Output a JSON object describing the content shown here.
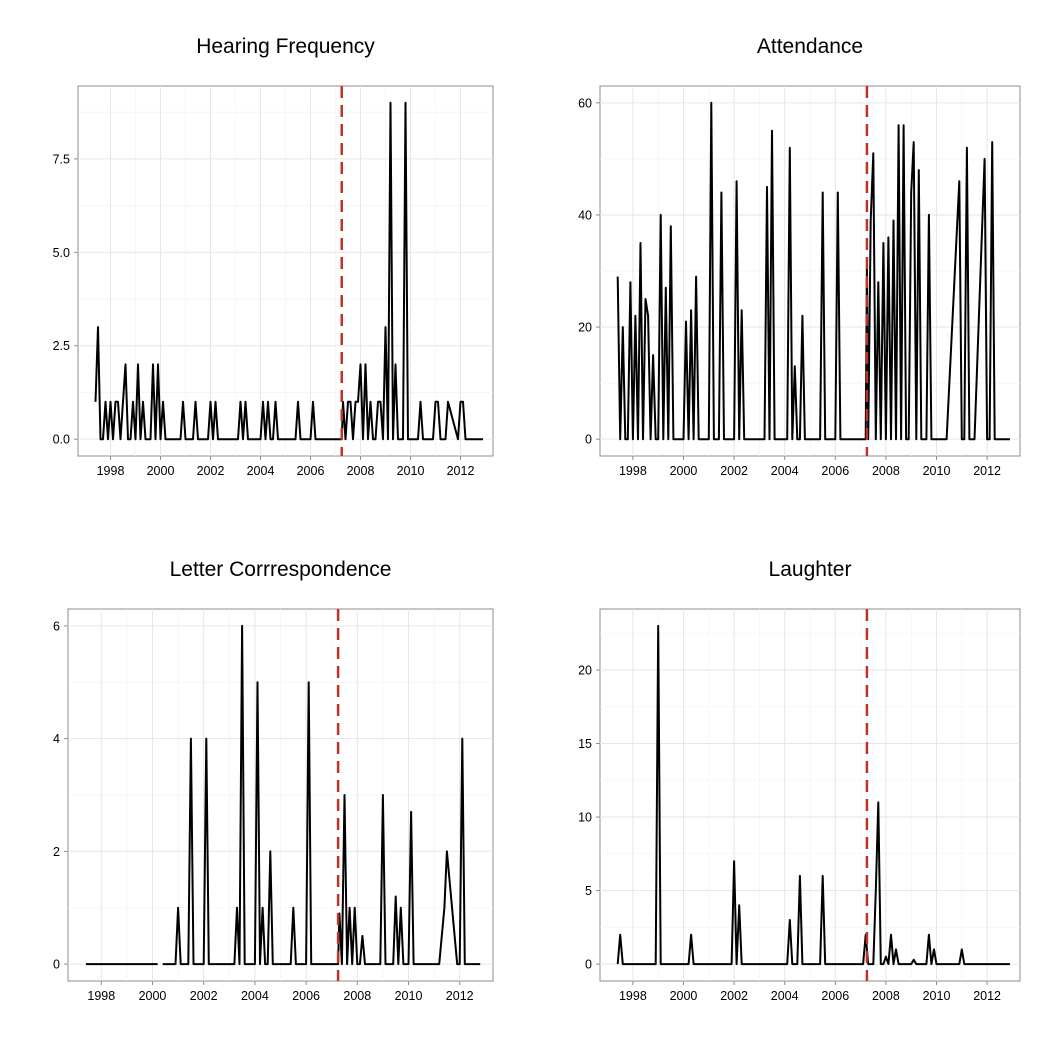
{
  "chart_data": [
    {
      "type": "line",
      "title": "Hearing Frequency",
      "xlim": [
        1996.7,
        2013.3
      ],
      "ylim": [
        -0.45,
        9.45
      ],
      "x_ticks": [
        1998,
        2000,
        2002,
        2004,
        2006,
        2008,
        2010,
        2012
      ],
      "y_ticks": [
        0.0,
        2.5,
        5.0,
        7.5
      ],
      "y_tick_labels": [
        "0.0",
        "2.5",
        "5.0",
        "7.5"
      ],
      "vline_x": 2007.25,
      "vline_color": "#c0312b",
      "x": [
        1997.4,
        1997.5,
        1997.6,
        1997.7,
        1997.8,
        1997.9,
        1998.0,
        1998.1,
        1998.2,
        1998.3,
        1998.4,
        1998.5,
        1998.6,
        1998.7,
        1998.8,
        1998.9,
        1999.0,
        1999.1,
        1999.2,
        1999.3,
        1999.4,
        1999.5,
        1999.6,
        1999.7,
        1999.8,
        1999.9,
        2000.0,
        2000.1,
        2000.2,
        2000.3,
        2000.4,
        2000.5,
        2000.8,
        2000.9,
        2001.0,
        2001.3,
        2001.4,
        2001.5,
        2001.9,
        2002.0,
        2002.1,
        2002.2,
        2002.3,
        2002.4,
        2003.1,
        2003.2,
        2003.3,
        2003.4,
        2003.5,
        2003.6,
        2004.0,
        2004.1,
        2004.2,
        2004.3,
        2004.4,
        2004.5,
        2004.6,
        2004.7,
        2004.8,
        2005.4,
        2005.5,
        2005.6,
        2006.0,
        2006.1,
        2006.2,
        2007.25,
        2007.3,
        2007.4,
        2007.5,
        2007.6,
        2007.7,
        2007.8,
        2007.9,
        2008.0,
        2008.1,
        2008.2,
        2008.3,
        2008.4,
        2008.5,
        2008.6,
        2008.7,
        2008.8,
        2008.9,
        2009.0,
        2009.1,
        2009.2,
        2009.3,
        2009.4,
        2009.5,
        2009.6,
        2009.7,
        2009.8,
        2009.9,
        2010.0,
        2010.1,
        2010.2,
        2010.3,
        2010.4,
        2010.5,
        2010.9,
        2011.0,
        2011.1,
        2011.2,
        2011.3,
        2011.4,
        2011.5,
        2011.9,
        2012.0,
        2012.1,
        2012.2,
        2012.3,
        2012.4,
        2012.5,
        2012.9
      ],
      "y": [
        1,
        3,
        0,
        0,
        1,
        0,
        1,
        0,
        1,
        1,
        0,
        1,
        2,
        0,
        0,
        1,
        0,
        2,
        0,
        1,
        0,
        0,
        0,
        2,
        0,
        2,
        0,
        1,
        0,
        0,
        0,
        0,
        0,
        1,
        0,
        0,
        1,
        0,
        0,
        1,
        0,
        1,
        0,
        0,
        0,
        1,
        0,
        1,
        0,
        0,
        0,
        1,
        0,
        1,
        0,
        0,
        1,
        0,
        0,
        0,
        1,
        0,
        0,
        1,
        0,
        0,
        1,
        0,
        1,
        1,
        0,
        1,
        1,
        2,
        0,
        2,
        0,
        1,
        0,
        0,
        1,
        1,
        0,
        3,
        0,
        9,
        0,
        2,
        0,
        0,
        0,
        9,
        0,
        0,
        0,
        0,
        0,
        1,
        0,
        0,
        1,
        1,
        0,
        0,
        0,
        1,
        0,
        1,
        1,
        0,
        0,
        0,
        0,
        0
      ]
    },
    {
      "type": "line",
      "title": "Attendance",
      "xlim": [
        1996.7,
        2013.3
      ],
      "ylim": [
        -3,
        63
      ],
      "x_ticks": [
        1998,
        2000,
        2002,
        2004,
        2006,
        2008,
        2010,
        2012
      ],
      "y_ticks": [
        0,
        20,
        40,
        60
      ],
      "y_tick_labels": [
        "0",
        "20",
        "40",
        "60"
      ],
      "vline_x": 2007.25,
      "vline_color": "#c0312b",
      "x": [
        1997.4,
        1997.5,
        1997.6,
        1997.7,
        1997.8,
        1997.9,
        1998.0,
        1998.1,
        1998.2,
        1998.3,
        1998.4,
        1998.5,
        1998.6,
        1998.7,
        1998.8,
        1998.9,
        1999.0,
        1999.1,
        1999.2,
        1999.3,
        1999.4,
        1999.5,
        1999.6,
        1999.7,
        1999.8,
        1999.9,
        2000.0,
        2000.1,
        2000.2,
        2000.3,
        2000.4,
        2000.5,
        2000.6,
        2000.7,
        2000.8,
        2000.9,
        2001.0,
        2001.1,
        2001.2,
        2001.3,
        2001.4,
        2001.5,
        2001.6,
        2002.0,
        2002.1,
        2002.2,
        2002.3,
        2002.4,
        2002.5,
        2003.1,
        2003.2,
        2003.3,
        2003.4,
        2003.5,
        2003.6,
        2004.0,
        2004.1,
        2004.2,
        2004.3,
        2004.4,
        2004.5,
        2004.6,
        2004.7,
        2004.8,
        2005.3,
        2005.4,
        2005.5,
        2005.6,
        2005.9,
        2006.0,
        2006.1,
        2006.2,
        2007.2,
        2007.25,
        2007.3,
        2007.4,
        2007.5,
        2007.6,
        2007.7,
        2007.8,
        2007.9,
        2008.0,
        2008.1,
        2008.2,
        2008.3,
        2008.4,
        2008.5,
        2008.6,
        2008.7,
        2008.8,
        2008.9,
        2009.0,
        2009.1,
        2009.2,
        2009.3,
        2009.4,
        2009.5,
        2009.6,
        2009.7,
        2009.8,
        2009.9,
        2010.0,
        2010.1,
        2010.2,
        2010.3,
        2010.4,
        2010.9,
        2011.0,
        2011.1,
        2011.2,
        2011.3,
        2011.4,
        2011.5,
        2011.9,
        2012.0,
        2012.1,
        2012.2,
        2012.3,
        2012.4,
        2012.5,
        2012.9
      ],
      "y": [
        29,
        0,
        20,
        0,
        0,
        28,
        0,
        22,
        0,
        35,
        0,
        25,
        22,
        0,
        15,
        0,
        0,
        40,
        0,
        27,
        0,
        38,
        0,
        0,
        0,
        0,
        0,
        21,
        0,
        23,
        0,
        29,
        0,
        0,
        0,
        0,
        0,
        60,
        0,
        0,
        0,
        44,
        0,
        0,
        46,
        0,
        23,
        0,
        0,
        0,
        0,
        45,
        0,
        55,
        0,
        0,
        0,
        52,
        0,
        13,
        0,
        0,
        22,
        0,
        0,
        0,
        44,
        0,
        0,
        0,
        44,
        0,
        0,
        31,
        0,
        39,
        51,
        0,
        28,
        0,
        35,
        0,
        36,
        0,
        39,
        0,
        56,
        0,
        56,
        0,
        0,
        44,
        53,
        0,
        48,
        0,
        0,
        0,
        40,
        0,
        0,
        0,
        0,
        0,
        0,
        0,
        46,
        0,
        0,
        52,
        0,
        0,
        0,
        50,
        0,
        0,
        53,
        0,
        0,
        0,
        0
      ]
    },
    {
      "type": "line",
      "title": "Letter Corrrespondence",
      "xlim": [
        1996.7,
        2013.3
      ],
      "ylim": [
        -0.3,
        6.3
      ],
      "x_ticks": [
        1998,
        2000,
        2002,
        2004,
        2006,
        2008,
        2010,
        2012
      ],
      "y_ticks": [
        0,
        2,
        4,
        6
      ],
      "y_tick_labels": [
        "0",
        "2",
        "4",
        "6"
      ],
      "vline_x": 2007.25,
      "vline_color": "#c0312b",
      "segments": [
        {
          "x": [
            1997.4,
            2000.2
          ],
          "y": [
            0,
            0
          ]
        },
        {
          "x": [
            2000.4,
            2000.9,
            2001.0,
            2001.1,
            2001.4,
            2001.5,
            2001.6,
            2002.0,
            2002.1,
            2002.2,
            2003.2,
            2003.3,
            2003.4,
            2003.5,
            2003.6,
            2004.0,
            2004.1,
            2004.2,
            2004.3,
            2004.4,
            2004.5,
            2004.6,
            2004.7,
            2005.4,
            2005.5,
            2005.6,
            2006.0,
            2006.1,
            2006.2,
            2007.25,
            2007.3,
            2007.4,
            2007.5,
            2007.6,
            2007.7,
            2007.8,
            2007.9,
            2008.0,
            2008.1,
            2008.2,
            2008.3,
            2008.9,
            2009.0,
            2009.1,
            2009.2,
            2009.4,
            2009.5,
            2009.6,
            2009.7,
            2009.8,
            2010.0,
            2010.1,
            2010.2,
            2011.2,
            2011.4,
            2011.5,
            2011.9,
            2012.0,
            2012.1,
            2012.2,
            2012.8
          ],
          "y": [
            0,
            0,
            1,
            0,
            0,
            4,
            0,
            0,
            4,
            0,
            0,
            1,
            0,
            6,
            0,
            0,
            5,
            0,
            1,
            0,
            0,
            2,
            0,
            0,
            1,
            0,
            0,
            5,
            0,
            0,
            0.9,
            0,
            3,
            0,
            1,
            0,
            1,
            0,
            0,
            0.5,
            0,
            0,
            3,
            0,
            0,
            0,
            1.2,
            0,
            1,
            0,
            0,
            2.7,
            0,
            0,
            1,
            2,
            0,
            0,
            4,
            0,
            0
          ]
        }
      ]
    },
    {
      "type": "line",
      "title": "Laughter",
      "xlim": [
        1996.7,
        2013.3
      ],
      "ylim": [
        -1.15,
        24.15
      ],
      "x_ticks": [
        1998,
        2000,
        2002,
        2004,
        2006,
        2008,
        2010,
        2012
      ],
      "y_ticks": [
        0,
        5,
        10,
        15,
        20
      ],
      "y_tick_labels": [
        "0",
        "5",
        "10",
        "15",
        "20"
      ],
      "vline_x": 2007.25,
      "vline_color": "#c0312b",
      "x": [
        1997.4,
        1997.5,
        1997.6,
        1998.9,
        1999.0,
        1999.1,
        2000.2,
        2000.3,
        2000.4,
        2001.9,
        2002.0,
        2002.1,
        2002.2,
        2002.3,
        2002.4,
        2004.1,
        2004.2,
        2004.3,
        2004.5,
        2004.6,
        2004.7,
        2005.4,
        2005.5,
        2005.6,
        2007.1,
        2007.2,
        2007.3,
        2007.5,
        2007.6,
        2007.7,
        2007.8,
        2007.9,
        2008.0,
        2008.1,
        2008.2,
        2008.3,
        2008.4,
        2008.5,
        2008.6,
        2009.0,
        2009.1,
        2009.2,
        2009.6,
        2009.7,
        2009.8,
        2009.9,
        2010.0,
        2010.1,
        2010.9,
        2011.0,
        2011.1,
        2012.9
      ],
      "y": [
        0,
        2,
        0,
        0,
        23,
        0,
        0,
        2,
        0,
        0,
        7,
        0,
        4,
        0,
        0,
        0,
        3,
        0,
        0,
        6,
        0,
        0,
        6,
        0,
        0,
        2,
        0,
        0,
        5,
        11,
        0,
        0,
        0.5,
        0,
        2,
        0,
        1,
        0,
        0,
        0,
        0.3,
        0,
        0,
        2,
        0,
        1,
        0,
        0,
        0,
        1,
        0,
        0
      ]
    }
  ]
}
